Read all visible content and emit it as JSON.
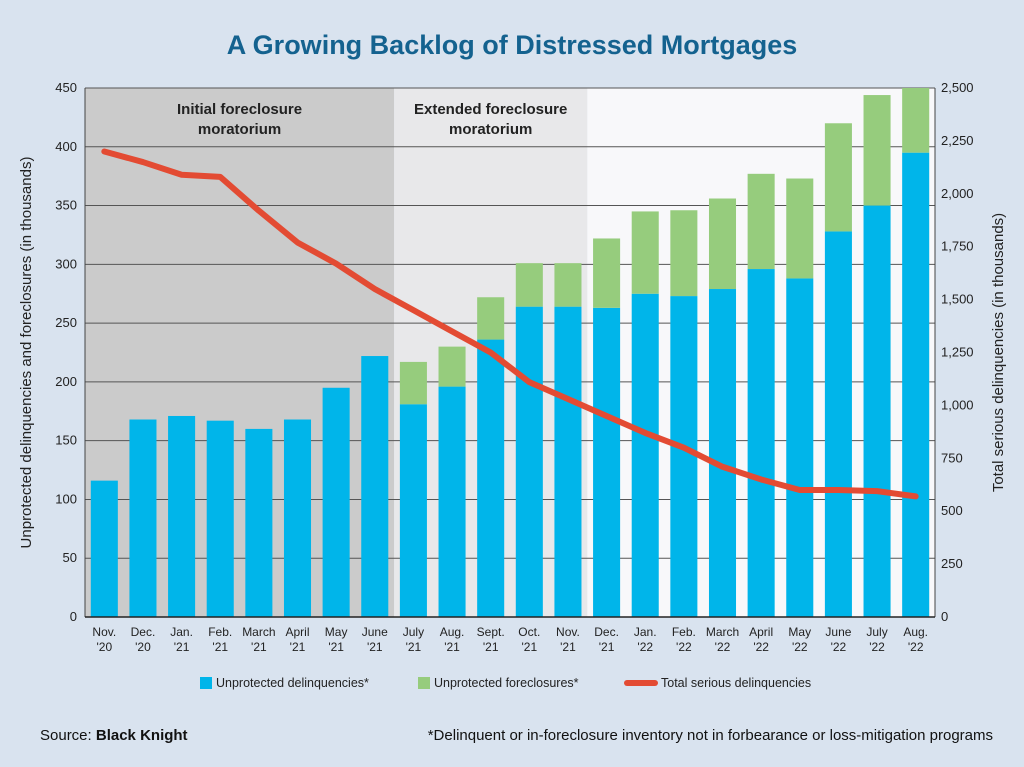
{
  "chart_data": {
    "type": "bar",
    "title": "A Growing Backlog of Distressed Mortgages",
    "y_left_label": "Unprotected delinquencies and foreclosures (in thousands)",
    "y_right_label": "Total serious delinquencies (in thousands)",
    "y_left_range": [
      0,
      450
    ],
    "y_left_ticks": [
      0,
      50,
      100,
      150,
      200,
      250,
      300,
      350,
      400,
      450
    ],
    "y_right_range": [
      0,
      2500
    ],
    "y_right_ticks": [
      "0",
      "250",
      "500",
      "750",
      "1,000",
      "1,250",
      "1,500",
      "1,750",
      "2,000",
      "2,250",
      "2,500"
    ],
    "grid": true,
    "categories": [
      [
        "Nov.",
        "'20"
      ],
      [
        "Dec.",
        "'20"
      ],
      [
        "Jan.",
        "'21"
      ],
      [
        "Feb.",
        "'21"
      ],
      [
        "March",
        "'21"
      ],
      [
        "April",
        "'21"
      ],
      [
        "May",
        "'21"
      ],
      [
        "June",
        "'21"
      ],
      [
        "July",
        "'21"
      ],
      [
        "Aug.",
        "'21"
      ],
      [
        "Sept.",
        "'21"
      ],
      [
        "Oct.",
        "'21"
      ],
      [
        "Nov.",
        "'21"
      ],
      [
        "Dec.",
        "'21"
      ],
      [
        "Jan.",
        "'22"
      ],
      [
        "Feb.",
        "'22"
      ],
      [
        "March",
        "'22"
      ],
      [
        "April",
        "'22"
      ],
      [
        "May",
        "'22"
      ],
      [
        "June",
        "'22"
      ],
      [
        "July",
        "'22"
      ],
      [
        "Aug.",
        "'22"
      ]
    ],
    "series": [
      {
        "name": "Unprotected delinquencies*",
        "type": "bar",
        "axis": "left",
        "color": "#00b5ea",
        "values": [
          116,
          168,
          171,
          167,
          160,
          168,
          195,
          222,
          181,
          196,
          236,
          264,
          264,
          263,
          275,
          273,
          279,
          296,
          288,
          328,
          350,
          395
        ]
      },
      {
        "name": "Unprotected foreclosures*",
        "type": "bar-stacked",
        "axis": "left",
        "color": "#96cc7d",
        "values": [
          0,
          0,
          0,
          0,
          0,
          0,
          0,
          0,
          36,
          34,
          36,
          37,
          37,
          59,
          70,
          73,
          77,
          81,
          85,
          92,
          94,
          55
        ]
      },
      {
        "name": "Total serious delinquencies",
        "type": "line",
        "axis": "right",
        "color": "#e34b33",
        "values": [
          2200,
          2150,
          2090,
          2080,
          1920,
          1770,
          1670,
          1550,
          1450,
          1350,
          1250,
          1110,
          1030,
          950,
          870,
          800,
          710,
          650,
          600,
          600,
          595,
          570
        ]
      }
    ],
    "regions": [
      {
        "label_lines": [
          "Initial foreclosure",
          "moratorium"
        ],
        "from_index": 0,
        "to_index": 7,
        "color": "#cbcbcb"
      },
      {
        "label_lines": [
          "Extended foreclosure",
          "moratorium"
        ],
        "from_index": 8,
        "to_index": 12,
        "color": "#e8e8ea"
      },
      {
        "label_lines": [],
        "from_index": 13,
        "to_index": 21,
        "color": "#f8f8fa"
      }
    ],
    "legend_position": "bottom-center",
    "source_label": "Source: ",
    "source_name": "Black Knight",
    "footnote": "*Delinquent or in-foreclosure inventory not in forbearance or loss-mitigation programs"
  }
}
